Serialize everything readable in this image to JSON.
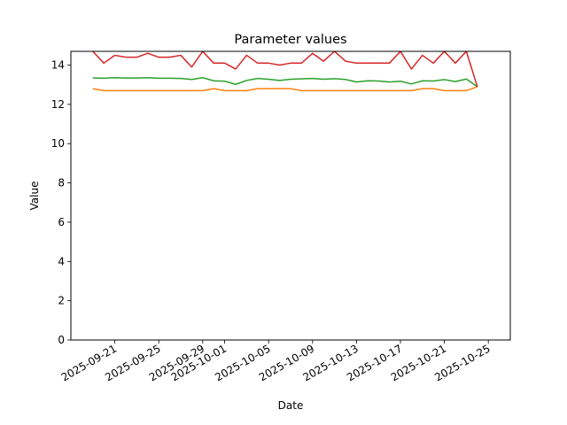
{
  "chart_data": {
    "type": "line",
    "title": "Parameter values",
    "xlabel": "Date",
    "ylabel": "Value",
    "x_scale": "date",
    "xlim": [
      "2025-09-17",
      "2025-10-27"
    ],
    "ylim": [
      0,
      14.7
    ],
    "grid": false,
    "legend": "none",
    "x_tick_labels": [
      "2025-09-21",
      "2025-09-25",
      "2025-09-29",
      "2025-10-01",
      "2025-10-05",
      "2025-10-09",
      "2025-10-13",
      "2025-10-17",
      "2025-10-21",
      "2025-10-25"
    ],
    "y_tick_labels": [
      "0",
      "2",
      "4",
      "6",
      "8",
      "10",
      "12",
      "14"
    ],
    "x": [
      "2025-09-19",
      "2025-09-20",
      "2025-09-21",
      "2025-09-22",
      "2025-09-23",
      "2025-09-24",
      "2025-09-25",
      "2025-09-26",
      "2025-09-27",
      "2025-09-28",
      "2025-09-29",
      "2025-09-30",
      "2025-10-01",
      "2025-10-02",
      "2025-10-03",
      "2025-10-04",
      "2025-10-05",
      "2025-10-06",
      "2025-10-07",
      "2025-10-08",
      "2025-10-09",
      "2025-10-10",
      "2025-10-11",
      "2025-10-12",
      "2025-10-13",
      "2025-10-14",
      "2025-10-15",
      "2025-10-16",
      "2025-10-17",
      "2025-10-18",
      "2025-10-19",
      "2025-10-20",
      "2025-10-21",
      "2025-10-22",
      "2025-10-23",
      "2025-10-24"
    ],
    "series": [
      {
        "color": "#ff7f0e",
        "values": [
          12.8,
          12.7,
          12.7,
          12.7,
          12.7,
          12.7,
          12.7,
          12.7,
          12.7,
          12.7,
          12.7,
          12.8,
          12.7,
          12.7,
          12.7,
          12.8,
          12.8,
          12.8,
          12.8,
          12.7,
          12.7,
          12.7,
          12.7,
          12.7,
          12.7,
          12.7,
          12.7,
          12.7,
          12.7,
          12.7,
          12.8,
          12.8,
          12.7,
          12.7,
          12.7,
          12.9
        ]
      },
      {
        "color": "#2ca02c",
        "values": [
          13.35,
          13.33,
          13.36,
          13.34,
          13.34,
          13.36,
          13.33,
          13.33,
          13.32,
          13.27,
          13.36,
          13.2,
          13.18,
          13.02,
          13.22,
          13.32,
          13.28,
          13.22,
          13.28,
          13.3,
          13.32,
          13.28,
          13.31,
          13.27,
          13.14,
          13.2,
          13.19,
          13.14,
          13.18,
          13.04,
          13.2,
          13.19,
          13.26,
          13.16,
          13.29,
          12.9
        ]
      },
      {
        "color": "#d62728",
        "values": [
          14.7,
          14.1,
          14.5,
          14.4,
          14.4,
          14.6,
          14.4,
          14.4,
          14.5,
          13.9,
          14.7,
          14.1,
          14.1,
          13.8,
          14.5,
          14.1,
          14.1,
          14.0,
          14.1,
          14.1,
          14.6,
          14.2,
          14.7,
          14.2,
          14.1,
          14.1,
          14.1,
          14.1,
          14.7,
          13.8,
          14.5,
          14.1,
          14.7,
          14.1,
          14.7,
          12.9
        ]
      }
    ]
  }
}
